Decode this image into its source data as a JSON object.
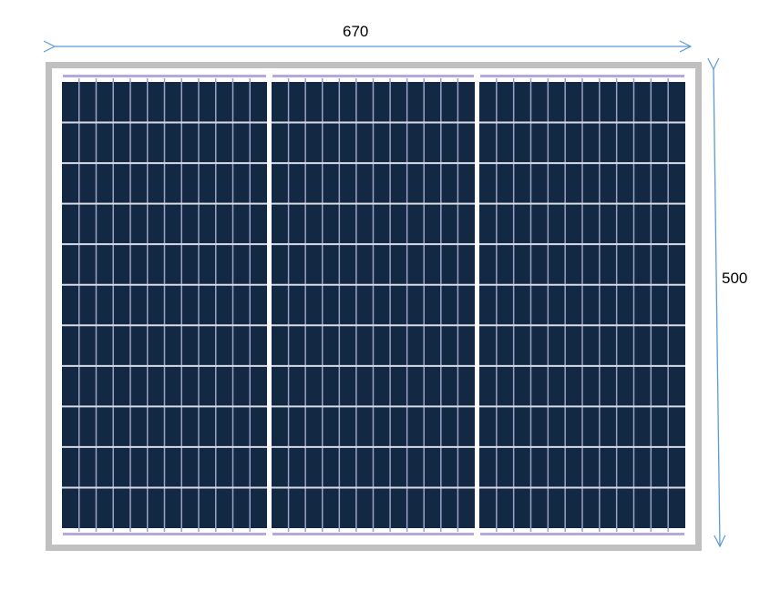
{
  "dimensions": {
    "width_label": "670",
    "height_label": "500"
  },
  "colors": {
    "frame": "#c0c0c0",
    "cell": "#132843",
    "grid_line": "#9aa3c8",
    "busbar": "#b3a9e0",
    "arrow": "#5b9bd5"
  }
}
